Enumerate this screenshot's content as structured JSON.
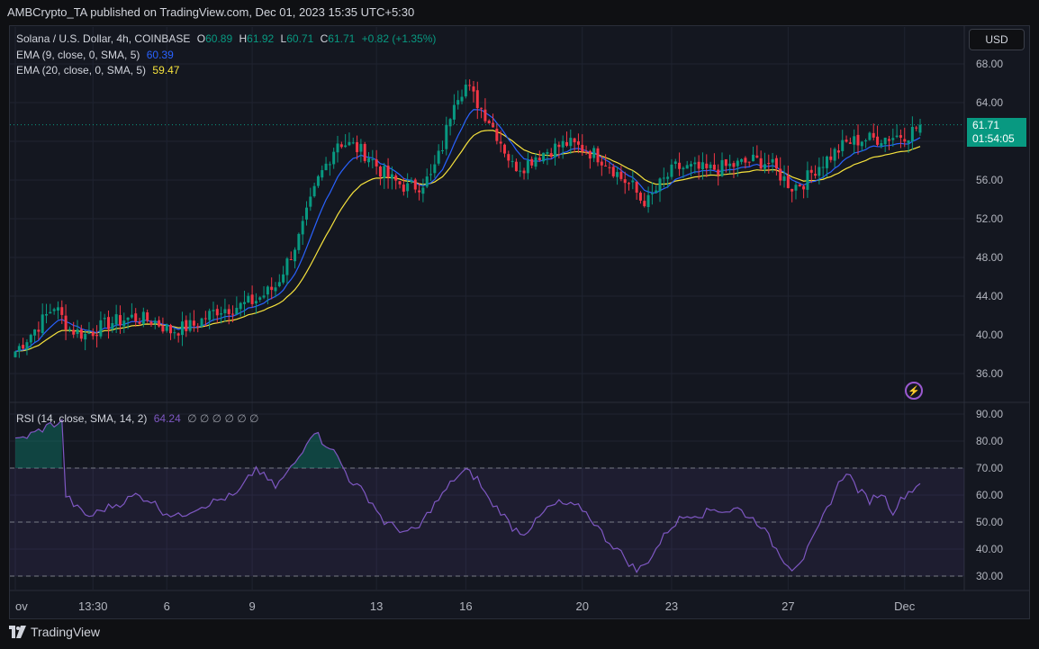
{
  "header": {
    "credit": "AMBCrypto_TA published on TradingView.com, Dec 01, 2023 15:35 UTC+5:30"
  },
  "legend": {
    "symbol": "Solana / U.S. Dollar, 4h, COINBASE",
    "o_label": "O",
    "o": "60.89",
    "h_label": "H",
    "h": "61.92",
    "l_label": "L",
    "l": "60.71",
    "c_label": "C",
    "c": "61.71",
    "change": "+0.82 (+1.35%)",
    "ema9_label": "EMA (9, close, 0, SMA, 5)",
    "ema9_value": "60.39",
    "ema20_label": "EMA (20, close, 0, SMA, 5)",
    "ema20_value": "59.47",
    "rsi_label": "RSI (14, close, SMA, 14, 2)",
    "rsi_value": "64.24",
    "rsi_extra": "∅ ∅ ∅ ∅ ∅ ∅"
  },
  "currency_button": "USD",
  "price_tag": {
    "price": "61.71",
    "countdown": "01:54:05"
  },
  "footer": {
    "brand": "TradingView",
    "logo_icon": "tradingview-logo-icon"
  },
  "colors": {
    "up": "#089981",
    "down": "#f23645",
    "ema9": "#2962ff",
    "ema20": "#f7e33d",
    "rsi": "#7e57c2",
    "background": "#141720"
  },
  "chart_data": [
    {
      "type": "candlestick",
      "title": "Solana / U.S. Dollar, 4h, COINBASE",
      "ylim": [
        33,
        71
      ],
      "y_ticks": [
        "68.00",
        "64.00",
        "60.00",
        "56.00",
        "52.00",
        "48.00",
        "44.00",
        "40.00",
        "36.00"
      ],
      "x_ticks": [
        "ov",
        "13:30",
        "6",
        "9",
        "13",
        "16",
        "20",
        "23",
        "27",
        "Dec"
      ],
      "x_tick_index": [
        0,
        20,
        39,
        61,
        93,
        116,
        146,
        169,
        199,
        229
      ],
      "close_anchors": [
        [
          0,
          38.3
        ],
        [
          6,
          41
        ],
        [
          10,
          43
        ],
        [
          14,
          40.6
        ],
        [
          18,
          40
        ],
        [
          24,
          41.2
        ],
        [
          30,
          41.8
        ],
        [
          36,
          41.4
        ],
        [
          40,
          40.4
        ],
        [
          46,
          41
        ],
        [
          52,
          42.6
        ],
        [
          58,
          43
        ],
        [
          62,
          43.6
        ],
        [
          67,
          45
        ],
        [
          73,
          50
        ],
        [
          78,
          56
        ],
        [
          83,
          60
        ],
        [
          87,
          59.5
        ],
        [
          91,
          58.5
        ],
        [
          94,
          57
        ],
        [
          97,
          56
        ],
        [
          101,
          55.2
        ],
        [
          104,
          55.5
        ],
        [
          107,
          56.3
        ],
        [
          110,
          59.5
        ],
        [
          113,
          64.5
        ],
        [
          116,
          65.8
        ],
        [
          119,
          64
        ],
        [
          122,
          62.2
        ],
        [
          125,
          60
        ],
        [
          128,
          57.5
        ],
        [
          131,
          57.5
        ],
        [
          134,
          58.5
        ],
        [
          138,
          59.2
        ],
        [
          142,
          59.8
        ],
        [
          146,
          59.3
        ],
        [
          150,
          58.5
        ],
        [
          153,
          57.6
        ],
        [
          156,
          56.2
        ],
        [
          159,
          55.3
        ],
        [
          161,
          54
        ],
        [
          163,
          53.8
        ],
        [
          166,
          55.5
        ],
        [
          170,
          57.3
        ],
        [
          174,
          57.2
        ],
        [
          178,
          57
        ],
        [
          182,
          57.3
        ],
        [
          186,
          57.6
        ],
        [
          190,
          58
        ],
        [
          194,
          57.8
        ],
        [
          197,
          56.5
        ],
        [
          200,
          55.3
        ],
        [
          203,
          55.8
        ],
        [
          206,
          57.2
        ],
        [
          210,
          58.5
        ],
        [
          214,
          59.8
        ],
        [
          218,
          60.2
        ],
        [
          222,
          60.3
        ],
        [
          226,
          60.5
        ],
        [
          230,
          60.8
        ],
        [
          233,
          61.71
        ]
      ],
      "ema9_last": 60.39,
      "ema20_last": 59.47,
      "last_price": 61.71
    },
    {
      "type": "line",
      "title": "RSI (14, close, SMA, 14, 2)",
      "ylim": [
        30,
        90
      ],
      "y_ticks": [
        "90.00",
        "80.00",
        "70.00",
        "60.00",
        "50.00",
        "40.00",
        "30.00"
      ],
      "bands": [
        70,
        50,
        30
      ],
      "anchors": [
        [
          0,
          80
        ],
        [
          5,
          83
        ],
        [
          9,
          86
        ],
        [
          12,
          87
        ],
        [
          13,
          60
        ],
        [
          16,
          55
        ],
        [
          19,
          52
        ],
        [
          23,
          55
        ],
        [
          27,
          57
        ],
        [
          31,
          60
        ],
        [
          35,
          58
        ],
        [
          38,
          54
        ],
        [
          42,
          52
        ],
        [
          46,
          55
        ],
        [
          50,
          57
        ],
        [
          54,
          59
        ],
        [
          57,
          60
        ],
        [
          60,
          66
        ],
        [
          62,
          70
        ],
        [
          64,
          67
        ],
        [
          67,
          63
        ],
        [
          70,
          68
        ],
        [
          73,
          74
        ],
        [
          75,
          80
        ],
        [
          77,
          84
        ],
        [
          79,
          80
        ],
        [
          81,
          78
        ],
        [
          83,
          74
        ],
        [
          86,
          66
        ],
        [
          89,
          62
        ],
        [
          92,
          57
        ],
        [
          95,
          50
        ],
        [
          98,
          48
        ],
        [
          101,
          46
        ],
        [
          104,
          48
        ],
        [
          107,
          55
        ],
        [
          110,
          60
        ],
        [
          113,
          66
        ],
        [
          116,
          69
        ],
        [
          119,
          66
        ],
        [
          122,
          58
        ],
        [
          125,
          54
        ],
        [
          128,
          48
        ],
        [
          131,
          46
        ],
        [
          134,
          50
        ],
        [
          137,
          55
        ],
        [
          140,
          57
        ],
        [
          143,
          56
        ],
        [
          146,
          55
        ],
        [
          149,
          50
        ],
        [
          152,
          44
        ],
        [
          155,
          40
        ],
        [
          158,
          35
        ],
        [
          160,
          32
        ],
        [
          162,
          34
        ],
        [
          165,
          40
        ],
        [
          168,
          47
        ],
        [
          171,
          51
        ],
        [
          174,
          53
        ],
        [
          177,
          53
        ],
        [
          180,
          55
        ],
        [
          183,
          54
        ],
        [
          186,
          55
        ],
        [
          189,
          52
        ],
        [
          192,
          49
        ],
        [
          195,
          42
        ],
        [
          198,
          36
        ],
        [
          200,
          33
        ],
        [
          203,
          37
        ],
        [
          206,
          45
        ],
        [
          209,
          55
        ],
        [
          212,
          64
        ],
        [
          214,
          69
        ],
        [
          217,
          62
        ],
        [
          220,
          58
        ],
        [
          223,
          61
        ],
        [
          226,
          54
        ],
        [
          229,
          60
        ],
        [
          233,
          64.24
        ]
      ],
      "last": 64.24
    }
  ]
}
